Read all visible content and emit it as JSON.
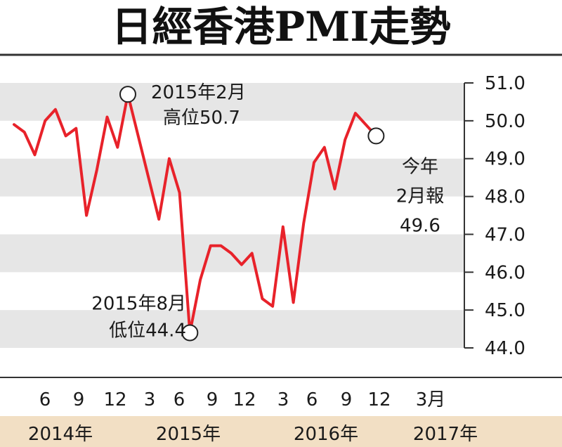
{
  "chart_data": {
    "type": "line",
    "title": "日經香港PMI走勢",
    "y_axis": {
      "ylim": [
        44.0,
        51.0
      ],
      "ticks": [
        "51.0",
        "50.0",
        "49.0",
        "48.0",
        "47.0",
        "46.0",
        "45.0",
        "44.0"
      ]
    },
    "x_month_labels": [
      "6",
      "9",
      "12",
      "3",
      "6",
      "9",
      "12",
      "3",
      "6",
      "9",
      "12",
      "3月"
    ],
    "x_year_labels": [
      "2014年",
      "2015年",
      "2016年",
      "2017年"
    ],
    "series": [
      {
        "color": "#e8222a",
        "x": [
          "2014-03",
          "2014-04",
          "2014-05",
          "2014-06",
          "2014-07",
          "2014-08",
          "2014-09",
          "2014-10",
          "2014-11",
          "2014-12",
          "2015-01",
          "2015-02",
          "2015-03",
          "2015-04",
          "2015-05",
          "2015-06",
          "2015-07",
          "2015-08",
          "2015-09",
          "2015-10",
          "2015-11",
          "2015-12",
          "2016-01",
          "2016-02",
          "2016-03",
          "2016-04",
          "2016-05",
          "2016-06",
          "2016-07",
          "2016-08",
          "2016-09",
          "2016-10",
          "2016-11",
          "2016-12",
          "2017-01",
          "2017-02"
        ],
        "values": [
          49.9,
          49.7,
          49.1,
          50.0,
          50.3,
          49.6,
          49.8,
          47.5,
          48.7,
          50.1,
          49.3,
          50.7,
          49.6,
          48.5,
          47.4,
          49.0,
          48.1,
          44.4,
          45.8,
          46.7,
          46.7,
          46.5,
          46.2,
          46.5,
          45.3,
          45.1,
          47.2,
          45.2,
          47.3,
          48.9,
          49.3,
          48.2,
          49.5,
          50.2,
          49.9,
          49.6
        ]
      }
    ],
    "annotations": [
      {
        "x": "2015-02",
        "value": 50.7,
        "lines": [
          "2015年2月",
          "高位50.7"
        ]
      },
      {
        "x": "2015-08",
        "value": 44.4,
        "lines": [
          "2015年8月",
          "低位44.4"
        ]
      },
      {
        "x": "2017-02",
        "value": 49.6,
        "lines": [
          "今年",
          "2月報",
          "49.6"
        ]
      }
    ],
    "grid": "horizontal bands",
    "colors": {
      "line": "#e8222a",
      "band": "#e6e6e6",
      "year_bar": "#f2dfc4",
      "axis": "#333333"
    }
  }
}
